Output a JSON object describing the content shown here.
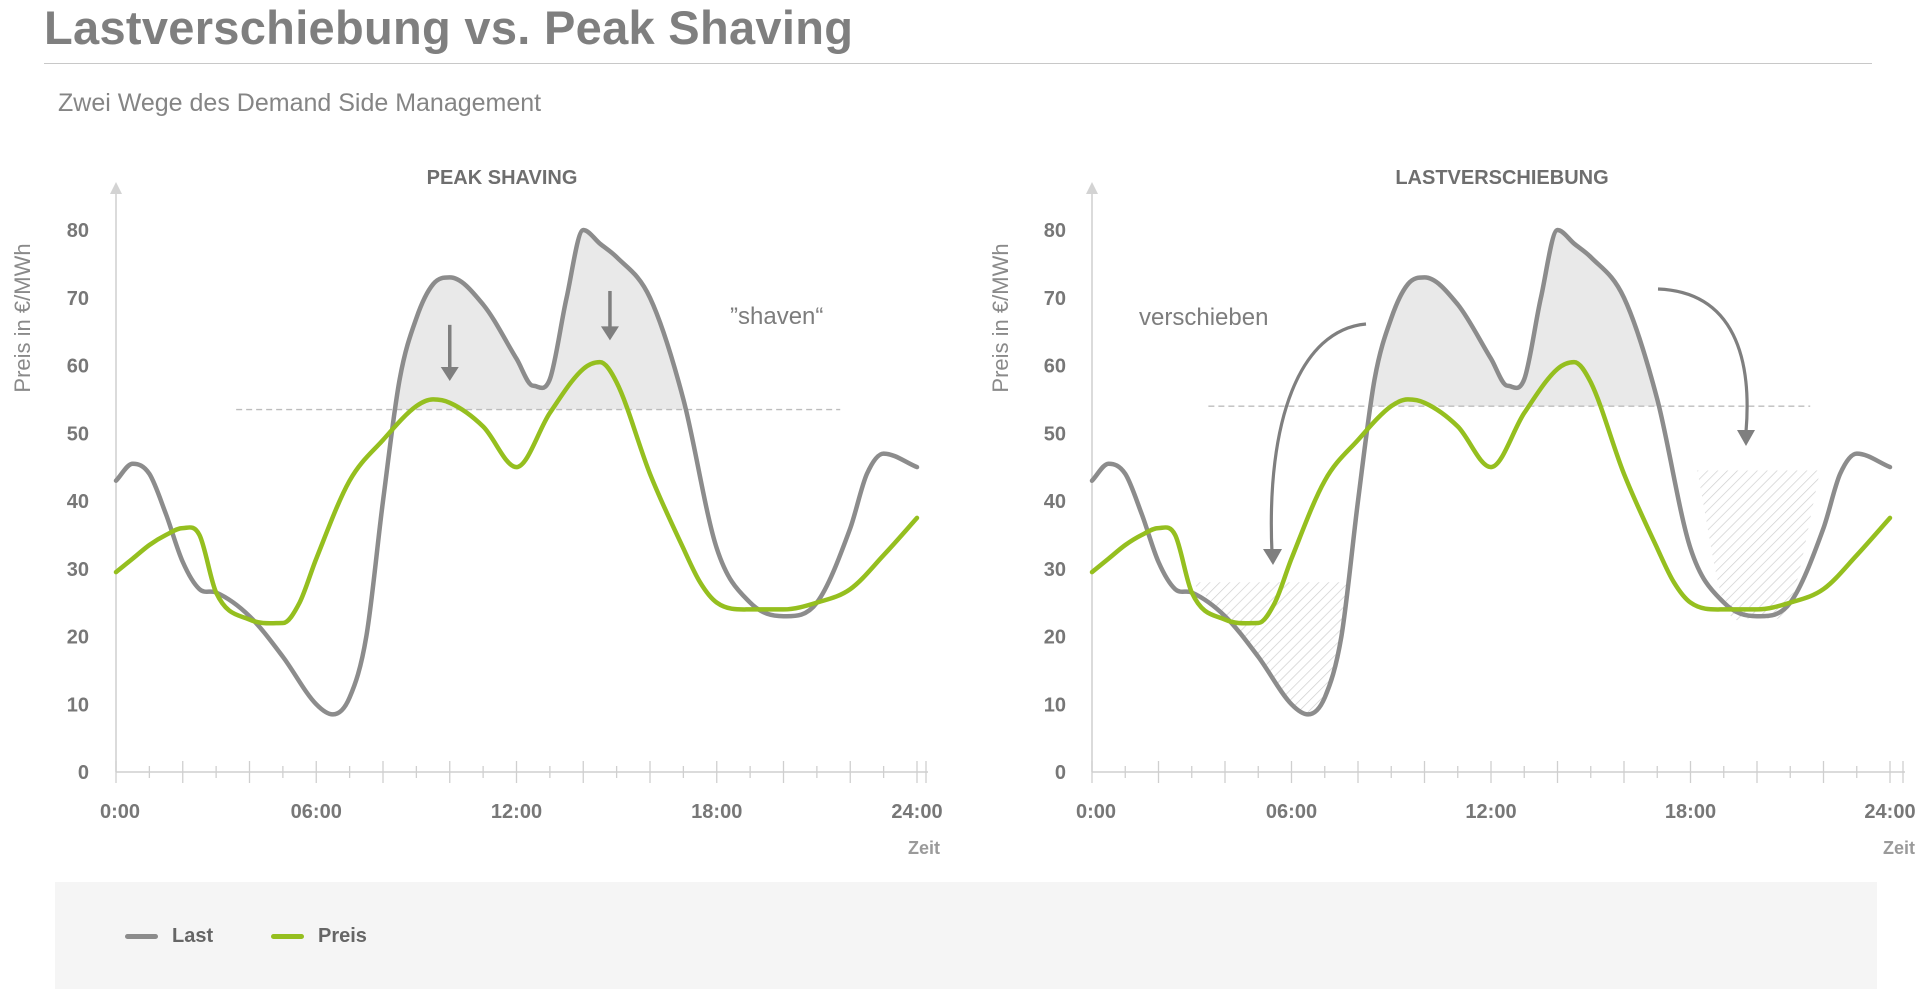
{
  "title": "Lastverschiebung vs. Peak Shaving",
  "subtitle": "Zwei Wege des Demand Side Management",
  "colors": {
    "last": "#8c8c8c",
    "preis": "#95bf1f",
    "axis": "#cfcfcf",
    "fill": "#e9e9e9",
    "text": "#7a7a7a"
  },
  "legend": [
    {
      "label": "Last",
      "color": "#8c8c8c"
    },
    {
      "label": "Preis",
      "color": "#95bf1f"
    }
  ],
  "chart_data": [
    {
      "type": "line",
      "title": "PEAK SHAVING",
      "ylabel": "Preis in €/MWh",
      "xlabel": "Zeit",
      "ylim": [
        0,
        80
      ],
      "yticks": [
        "0",
        "10",
        "20",
        "30",
        "40",
        "50",
        "60",
        "70",
        "80"
      ],
      "xlim": [
        0,
        24
      ],
      "xticks": [
        "0:00",
        "06:00",
        "12:00",
        "18:00",
        "24:00"
      ],
      "threshold": 53.5,
      "annotation": "”shaven“",
      "series": [
        {
          "name": "Last",
          "x": [
            0,
            0.5,
            1,
            1.5,
            2,
            2.5,
            3,
            4,
            5,
            6,
            6.5,
            7,
            7.5,
            8,
            8.5,
            9,
            9.5,
            10,
            11,
            12,
            12.5,
            13,
            13.5,
            14,
            14.5,
            15,
            16,
            17,
            18,
            19,
            20,
            21,
            22,
            22.5,
            23,
            24
          ],
          "values": [
            43,
            45.5,
            44,
            38,
            31,
            27,
            26.5,
            23,
            17,
            10,
            8.5,
            11,
            20,
            40,
            58,
            67,
            72,
            73,
            69,
            61,
            57,
            58,
            70,
            80,
            78,
            76,
            70,
            55,
            33,
            25,
            23,
            25,
            36,
            44,
            47,
            45
          ]
        },
        {
          "name": "Preis",
          "x": [
            0,
            0.5,
            1,
            1.5,
            2,
            2.5,
            3,
            4,
            5,
            5.5,
            6,
            7,
            8,
            9,
            9.5,
            10,
            11,
            12,
            13,
            14,
            14.5,
            15,
            16,
            17,
            17.5,
            18,
            19,
            20,
            21,
            22,
            23,
            24
          ],
          "values": [
            29.5,
            31.5,
            33.5,
            35,
            36,
            35,
            26.5,
            22.5,
            22,
            25,
            31.5,
            43,
            49,
            54,
            55,
            54.5,
            51,
            45,
            53,
            59.5,
            60.5,
            57.5,
            44,
            33,
            28,
            25,
            24,
            24,
            25,
            27,
            32,
            37.5
          ]
        }
      ]
    },
    {
      "type": "line",
      "title": "LASTVERSCHIEBUNG",
      "ylabel": "Preis in €/MWh",
      "xlabel": "Zeit",
      "ylim": [
        0,
        80
      ],
      "yticks": [
        "0",
        "10",
        "20",
        "30",
        "40",
        "50",
        "60",
        "70",
        "80"
      ],
      "xlim": [
        0,
        24
      ],
      "xticks": [
        "0:00",
        "06:00",
        "12:00",
        "18:00",
        "24:00"
      ],
      "threshold": 54,
      "annotation": "verschieben",
      "shifted_fill_levels": [
        28,
        44.5
      ],
      "series": [
        {
          "name": "Last",
          "x": [
            0,
            0.5,
            1,
            1.5,
            2,
            2.5,
            3,
            4,
            5,
            6,
            6.5,
            7,
            7.5,
            8,
            8.5,
            9,
            9.5,
            10,
            11,
            12,
            12.5,
            13,
            13.5,
            14,
            14.5,
            15,
            16,
            17,
            18,
            19,
            20,
            21,
            22,
            22.5,
            23,
            24
          ],
          "values": [
            43,
            45.5,
            44,
            38,
            31,
            27,
            26.5,
            23,
            17,
            10,
            8.5,
            11,
            20,
            40,
            58,
            67,
            72,
            73,
            69,
            61,
            57,
            58,
            70,
            80,
            78,
            76,
            70,
            55,
            33,
            25,
            23,
            25,
            36,
            44,
            47,
            45
          ]
        },
        {
          "name": "Preis",
          "x": [
            0,
            0.5,
            1,
            1.5,
            2,
            2.5,
            3,
            4,
            5,
            5.5,
            6,
            7,
            8,
            9,
            9.5,
            10,
            11,
            12,
            13,
            14,
            14.5,
            15,
            16,
            17,
            17.5,
            18,
            19,
            20,
            21,
            22,
            23,
            24
          ],
          "values": [
            29.5,
            31.5,
            33.5,
            35,
            36,
            35,
            26.5,
            22.5,
            22,
            25,
            31.5,
            43,
            49,
            54,
            55,
            54.5,
            51,
            45,
            53,
            59.5,
            60.5,
            57.5,
            44,
            33,
            28,
            25,
            24,
            24,
            25,
            27,
            32,
            37.5
          ]
        }
      ]
    }
  ]
}
